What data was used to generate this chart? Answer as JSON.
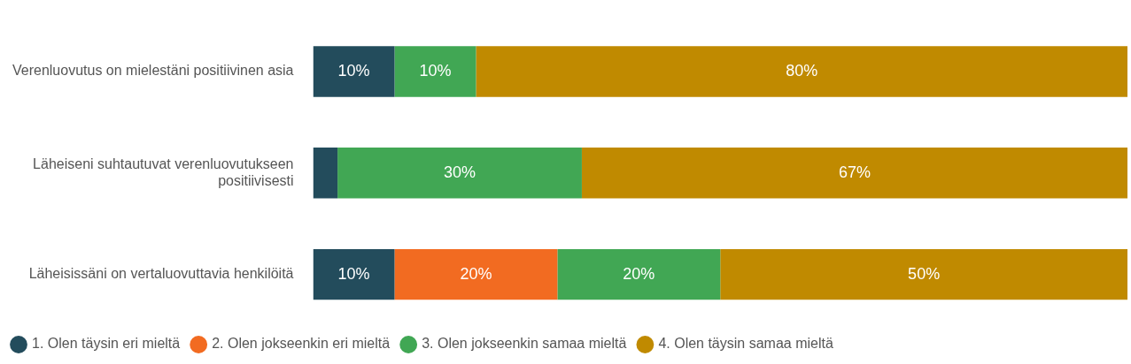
{
  "chart_data": {
    "type": "bar",
    "orientation": "horizontal",
    "stacked": true,
    "categories": [
      "Verenluovutus on mielestäni positiivinen asia",
      "Läheiseni suhtautuvat verenluovutukseen positiivisesti",
      "Läheisissäni on vertaluovuttavia henkilöitä"
    ],
    "series": [
      {
        "name": "1. Olen täysin eri mieltä",
        "color": "#234c5c",
        "values": [
          10,
          3,
          10
        ],
        "value_labels": [
          "10%",
          null,
          "10%"
        ]
      },
      {
        "name": "2. Olen jokseenkin eri mieltä",
        "color": "#f26b21",
        "values": [
          null,
          null,
          20
        ],
        "value_labels": [
          null,
          null,
          "20%"
        ]
      },
      {
        "name": "3. Olen jokseenkin samaa mieltä",
        "color": "#41a754",
        "values": [
          10,
          30,
          20
        ],
        "value_labels": [
          "10%",
          "30%",
          "20%"
        ]
      },
      {
        "name": "4. Olen täysin samaa mieltä",
        "color": "#c08a00",
        "values": [
          80,
          67,
          50
        ],
        "value_labels": [
          "80%",
          "67%",
          "50%"
        ]
      }
    ],
    "xlim": [
      0,
      100
    ],
    "tick_labels": false,
    "legend": "bottom"
  }
}
